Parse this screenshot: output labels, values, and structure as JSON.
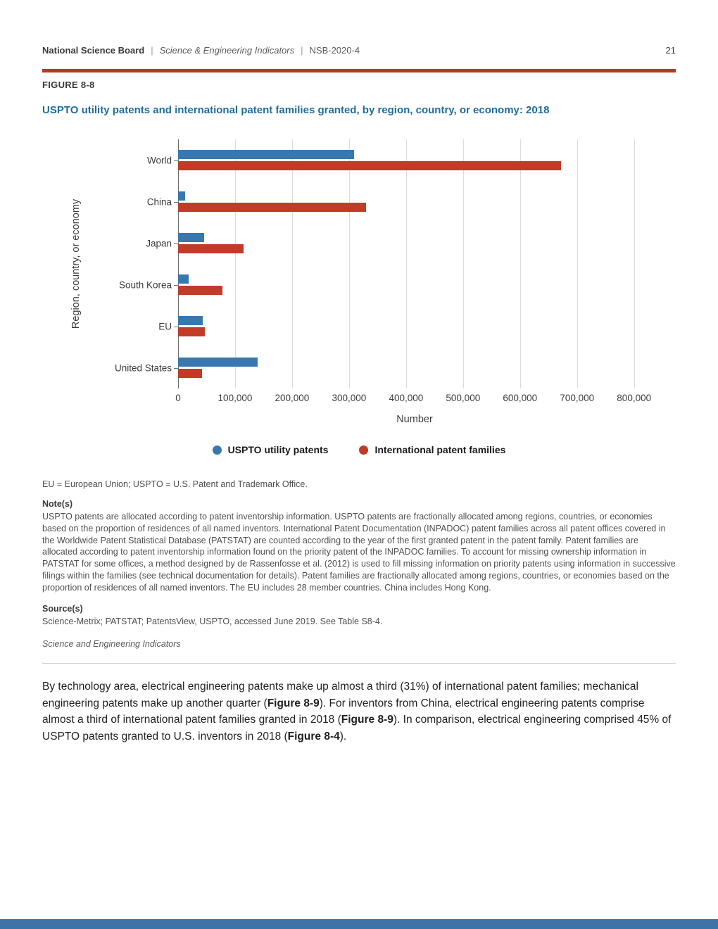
{
  "page": {
    "number": "21"
  },
  "header": {
    "org": "National Science Board",
    "sep": "|",
    "publication": "Science & Engineering Indicators",
    "report_id": "NSB-2020-4"
  },
  "figure": {
    "label": "FIGURE 8-8",
    "title": "USPTO utility patents and international patent families granted, by region, country, or economy: 2018"
  },
  "colors": {
    "rule_red": "#B23A28",
    "title_blue": "#1F6E9C",
    "footer_blue": "#3C74A6",
    "bar_blue": "#3878AE",
    "bar_red": "#C13B28"
  },
  "chart_data": {
    "type": "bar",
    "orientation": "horizontal",
    "categories": [
      "World",
      "China",
      "Japan",
      "South Korea",
      "EU",
      "United States"
    ],
    "series": [
      {
        "name": "USPTO utility patents",
        "color": "#3878AE",
        "values": [
          309000,
          12000,
          46000,
          18000,
          43000,
          140000
        ]
      },
      {
        "name": "International patent families",
        "color": "#C13B28",
        "values": [
          672000,
          330000,
          115000,
          78000,
          47000,
          42000
        ]
      }
    ],
    "title": "USPTO utility patents and international patent families granted, by region, country, or economy: 2018",
    "xlabel": "Number",
    "ylabel": "Region, country, or economy",
    "xlim": [
      0,
      830000
    ],
    "xticks": [
      0,
      100000,
      200000,
      300000,
      400000,
      500000,
      600000,
      700000,
      800000
    ],
    "xtick_labels": [
      "0",
      "100,000",
      "200,000",
      "300,000",
      "400,000",
      "500,000",
      "600,000",
      "700,000",
      "800,000"
    ],
    "grid": true,
    "legend_position": "bottom"
  },
  "notes": {
    "abbrev": "EU = European Union; USPTO = U.S. Patent and Trademark Office.",
    "notes_label": "Note(s)",
    "notes_text": "USPTO patents are allocated according to patent inventorship information. USPTO patents are fractionally allocated among regions, countries, or economies based on the proportion of residences of all named inventors. International Patent Documentation (INPADOC) patent families across all patent offices covered in the Worldwide Patent Statistical Database (PATSTAT) are counted according to the year of the first granted patent in the patent family. Patent families are allocated according to patent inventorship information found on the priority patent of the INPADOC families. To account for missing ownership information in PATSTAT for some offices, a method designed by de Rassenfosse et al. (2012) is used to fill missing information on priority patents using information in successive filings within the families (see technical documentation for details). Patent families are fractionally allocated among regions, countries, or economies based on the proportion of residences of all named inventors. The EU includes 28 member countries. China includes Hong Kong.",
    "sources_label": "Source(s)",
    "sources_text": "Science-Metrix; PATSTAT; PatentsView, USPTO, accessed June 2019. See Table S8-4.",
    "attribution": "Science and Engineering Indicators"
  },
  "body": {
    "paragraph": [
      {
        "text": "By technology area, electrical engineering patents make up almost a third (31%) of international patent families; mechanical engineering patents make up another quarter (",
        "bold": false
      },
      {
        "text": "Figure 8-9",
        "bold": true
      },
      {
        "text": "). For inventors from China, electrical engineering patents comprise almost a third of international patent families granted in 2018 (",
        "bold": false
      },
      {
        "text": "Figure 8-9",
        "bold": true
      },
      {
        "text": "). In comparison, electrical engineering comprised 45% of USPTO patents granted to U.S. inventors in 2018 (",
        "bold": false
      },
      {
        "text": "Figure 8-4",
        "bold": true
      },
      {
        "text": ").",
        "bold": false
      }
    ]
  }
}
